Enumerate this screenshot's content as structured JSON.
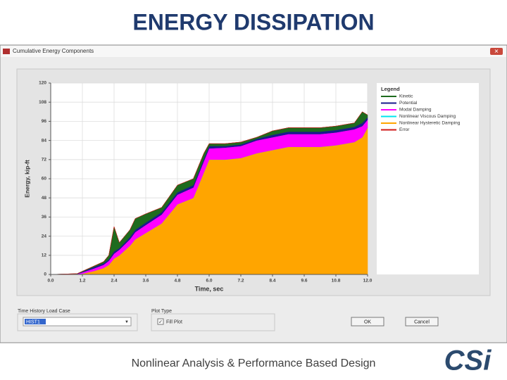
{
  "slide": {
    "title": "ENERGY DISSIPATION",
    "footer": "Nonlinear Analysis & Performance Based Design",
    "logo": "CSi"
  },
  "window": {
    "title": "Cumulative Energy Components",
    "load_case_label": "Time History Load Case",
    "load_case": "HIST1",
    "plot_type_label": "Plot Type",
    "fill_plot": "Fill Plot",
    "ok": "OK",
    "cancel": "Cancel"
  },
  "chart_data": {
    "type": "area",
    "stacked": true,
    "xlabel": "Time, sec",
    "ylabel": "Energy, kip-ft",
    "legend_title": "Legend",
    "grid": true,
    "x": [
      0,
      1.0,
      1.2,
      1.6,
      2.0,
      2.2,
      2.4,
      2.6,
      3.0,
      3.2,
      3.6,
      4.2,
      4.8,
      5.4,
      5.8,
      6.0,
      6.6,
      7.2,
      7.8,
      8.4,
      9.0,
      9.6,
      10.2,
      10.8,
      11.5,
      11.8,
      12.0
    ],
    "series": [
      {
        "name": "Kinetic",
        "color": "#1e6b1e",
        "values": [
          0,
          0.1,
          0.3,
          0.5,
          1,
          2.5,
          15.5,
          3.5,
          4.5,
          7,
          5.5,
          3,
          4.5,
          4,
          3.5,
          1.5,
          1.5,
          1.5,
          1,
          2.5,
          2.5,
          2.5,
          2.5,
          2.5,
          2.5,
          7,
          1.5
        ]
      },
      {
        "name": "Potential",
        "color": "#1a1a8c",
        "values": [
          0,
          0.1,
          0.4,
          1,
          1,
          1,
          1.5,
          1,
          1.5,
          1.5,
          1.5,
          1.5,
          1.5,
          1.5,
          1.5,
          1.5,
          1,
          1,
          1,
          1.5,
          1.5,
          1.5,
          1.5,
          1.5,
          1.5,
          2,
          1.5
        ]
      },
      {
        "name": "Modal Damping",
        "color": "#ff00ff",
        "values": [
          0,
          0.3,
          0.8,
          1.5,
          2,
          2.5,
          3,
          3.5,
          4,
          4.5,
          5,
          5.5,
          6,
          6.5,
          7,
          7,
          7.5,
          7.5,
          8,
          8,
          8,
          8,
          8,
          8,
          8,
          7,
          5
        ]
      },
      {
        "name": "Nonlinear Viscous Damping",
        "color": "#00e5ee",
        "values": [
          0,
          0,
          0,
          0,
          0,
          0,
          0,
          0,
          0,
          0,
          0,
          0,
          0,
          0,
          0,
          0,
          0,
          0,
          0,
          0,
          0,
          0,
          0,
          0,
          0,
          0,
          0
        ]
      },
      {
        "name": "Nonlinear Hysteretic Damping",
        "color": "#ffa500",
        "values": [
          0,
          0,
          0.5,
          2,
          4,
          6,
          10,
          12,
          18,
          22,
          26,
          32,
          44,
          48,
          64,
          72,
          72,
          73,
          76,
          78,
          80,
          80,
          80,
          81,
          83,
          86,
          92
        ]
      },
      {
        "name": "Error",
        "color": "#d11a1a",
        "values": [
          0,
          0,
          0,
          0,
          0,
          0,
          0,
          0,
          0,
          0,
          0,
          0,
          0,
          0,
          0,
          0,
          0,
          0,
          0,
          0,
          0,
          0,
          0,
          0,
          0,
          0,
          0
        ]
      }
    ],
    "xlim": [
      0,
      12
    ],
    "ylim": [
      0,
      120
    ],
    "xticks": [
      {
        "value": 0,
        "label": "0.0"
      },
      1.2,
      2.4,
      3.6,
      4.8,
      {
        "value": 6,
        "label": "6.0"
      },
      7.2,
      8.4,
      9.6,
      10.8,
      {
        "value": 12,
        "label": "12.0"
      }
    ],
    "yticks": [
      0,
      12,
      24,
      36,
      48,
      60,
      72,
      84,
      96,
      108,
      120
    ]
  }
}
